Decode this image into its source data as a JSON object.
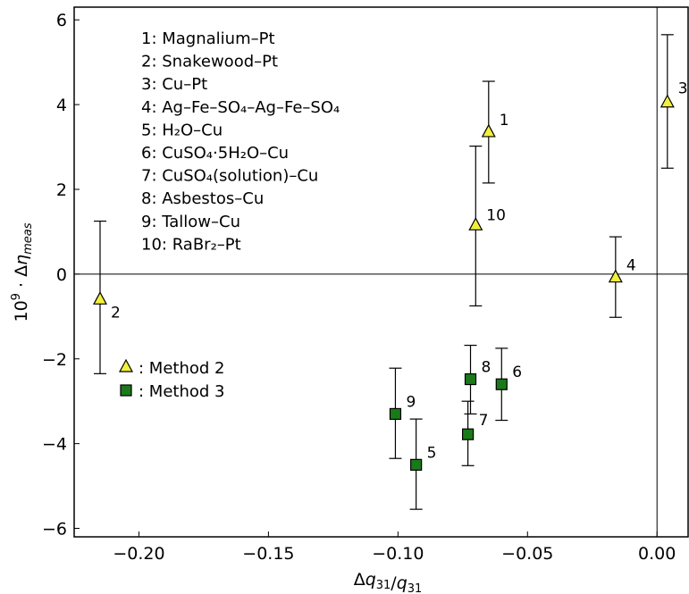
{
  "chart_data": {
    "type": "scatter",
    "xlabel": "Δq31/q31",
    "ylabel": "10⁹ · Δη_meas",
    "xlim": [
      -0.225,
      0.012
    ],
    "ylim": [
      -6.2,
      6.3
    ],
    "xticks": [
      -0.2,
      -0.15,
      -0.1,
      -0.05,
      0.0
    ],
    "xtick_labels": [
      "−0.20",
      "−0.15",
      "−0.10",
      "−0.05",
      "0.00"
    ],
    "yticks": [
      -6,
      -4,
      -2,
      0,
      2,
      4,
      6
    ],
    "ytick_labels": [
      "−6",
      "−4",
      "−2",
      "0",
      "2",
      "4",
      "6"
    ],
    "reference_lines": {
      "y": 0,
      "x": 0
    },
    "grid": false,
    "legend_placement": "left",
    "legend": [
      {
        "label": ": Method 2",
        "marker": "triangle",
        "color": "#f2ef3d"
      },
      {
        "label": ": Method 3",
        "marker": "square",
        "color": "#1a7a1a"
      }
    ],
    "sample_list": [
      "1: Magnalium–Pt",
      "2: Snakewood–Pt",
      "3: Cu–Pt",
      "4: Ag–Fe–SO₄–Ag–Fe–SO₄",
      "5: H₂O–Cu",
      "6: CuSO₄·5H₂O–Cu",
      "7: CuSO₄(solution)–Cu",
      "8: Asbestos–Cu",
      "9: Tallow–Cu",
      "10: RaBr₂–Pt"
    ],
    "series": [
      {
        "name": "Method 2",
        "marker": "triangle",
        "color": "#f2ef3d",
        "points": [
          {
            "label": "1",
            "x": -0.065,
            "y": 3.35,
            "err_low": 2.15,
            "err_high": 4.55
          },
          {
            "label": "2",
            "x": -0.215,
            "y": -0.6,
            "err_low": -2.35,
            "err_high": 1.25
          },
          {
            "label": "3",
            "x": 0.004,
            "y": 4.05,
            "err_low": 2.5,
            "err_high": 5.65
          },
          {
            "label": "4",
            "x": -0.016,
            "y": -0.08,
            "err_low": -1.02,
            "err_high": 0.88
          },
          {
            "label": "10",
            "x": -0.07,
            "y": 1.15,
            "err_low": -0.75,
            "err_high": 3.02
          }
        ]
      },
      {
        "name": "Method 3",
        "marker": "square",
        "color": "#1a7a1a",
        "points": [
          {
            "label": "5",
            "x": -0.093,
            "y": -4.5,
            "err_low": -5.55,
            "err_high": -3.42
          },
          {
            "label": "6",
            "x": -0.06,
            "y": -2.6,
            "err_low": -3.45,
            "err_high": -1.75
          },
          {
            "label": "7",
            "x": -0.073,
            "y": -3.78,
            "err_low": -4.52,
            "err_high": -3.0
          },
          {
            "label": "8",
            "x": -0.072,
            "y": -2.48,
            "err_low": -3.3,
            "err_high": -1.68
          },
          {
            "label": "9",
            "x": -0.101,
            "y": -3.3,
            "err_low": -4.35,
            "err_high": -2.22
          }
        ]
      }
    ]
  }
}
